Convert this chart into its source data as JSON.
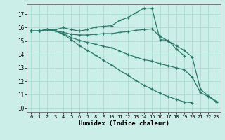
{
  "xlabel": "Humidex (Indice chaleur)",
  "ylabel": "",
  "background_color": "#cceee8",
  "grid_color": "#aaddcc",
  "line_color": "#2a7a6a",
  "ylim": [
    9.7,
    17.75
  ],
  "xlim": [
    -0.5,
    23.5
  ],
  "yticks": [
    10,
    11,
    12,
    13,
    14,
    15,
    16,
    17
  ],
  "xticks": [
    0,
    1,
    2,
    3,
    4,
    5,
    6,
    7,
    8,
    9,
    10,
    11,
    12,
    13,
    14,
    15,
    16,
    17,
    18,
    19,
    20,
    21,
    22,
    23
  ],
  "series": [
    {
      "x": [
        0,
        1,
        2,
        3,
        4,
        5,
        6,
        7,
        8,
        9,
        10,
        11,
        12,
        13,
        14,
        15,
        16,
        17,
        18,
        19
      ],
      "y": [
        15.75,
        15.75,
        15.85,
        15.85,
        16.0,
        15.85,
        15.75,
        15.85,
        16.05,
        16.1,
        16.15,
        16.55,
        16.75,
        17.1,
        17.45,
        17.45,
        15.1,
        15.05,
        14.4,
        13.9
      ]
    },
    {
      "x": [
        0,
        1,
        2,
        3,
        4,
        5,
        6,
        7,
        8,
        9,
        10,
        11,
        12,
        13,
        14,
        15,
        16,
        17,
        18,
        19,
        20,
        21,
        22,
        23
      ],
      "y": [
        15.75,
        15.75,
        15.85,
        15.75,
        15.65,
        15.5,
        15.45,
        15.45,
        15.5,
        15.55,
        15.55,
        15.65,
        15.7,
        15.8,
        15.85,
        15.9,
        15.35,
        15.0,
        14.65,
        14.3,
        13.8,
        11.4,
        10.9,
        10.5
      ]
    },
    {
      "x": [
        0,
        1,
        2,
        3,
        4,
        5,
        6,
        7,
        8,
        9,
        10,
        11,
        12,
        13,
        14,
        15,
        16,
        17,
        18,
        19,
        20,
        21,
        22,
        23
      ],
      "y": [
        15.75,
        15.75,
        15.85,
        15.75,
        15.55,
        15.25,
        15.05,
        14.9,
        14.75,
        14.6,
        14.5,
        14.25,
        14.0,
        13.8,
        13.6,
        13.5,
        13.3,
        13.15,
        13.0,
        12.85,
        12.3,
        11.15,
        10.85,
        10.45
      ]
    },
    {
      "x": [
        0,
        1,
        2,
        3,
        4,
        5,
        6,
        7,
        8,
        9,
        10,
        11,
        12,
        13,
        14,
        15,
        16,
        17,
        18,
        19,
        20
      ],
      "y": [
        15.75,
        15.75,
        15.85,
        15.75,
        15.5,
        15.1,
        14.65,
        14.3,
        13.95,
        13.55,
        13.2,
        12.8,
        12.45,
        12.05,
        11.7,
        11.4,
        11.1,
        10.85,
        10.65,
        10.45,
        10.4
      ]
    }
  ]
}
